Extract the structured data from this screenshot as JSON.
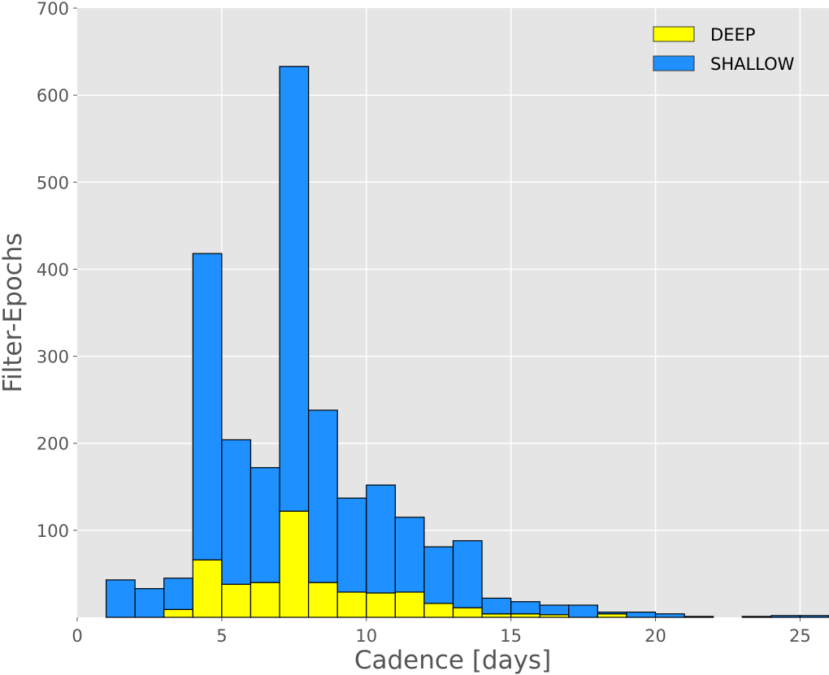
{
  "chart_data": {
    "type": "bar",
    "stacked": true,
    "title": "",
    "xlabel": "Cadence [days]",
    "ylabel": "Filter-Epochs",
    "xlim": [
      0,
      26
    ],
    "ylim": [
      0,
      700
    ],
    "xticks": [
      0,
      5,
      10,
      15,
      20,
      25
    ],
    "yticks": [
      100,
      200,
      300,
      400,
      500,
      600,
      700
    ],
    "grid": true,
    "legend_position": "upper right",
    "bin_width": 1,
    "bin_edges": [
      1,
      2,
      3,
      4,
      5,
      6,
      7,
      8,
      9,
      10,
      11,
      12,
      13,
      14,
      15,
      16,
      17,
      18,
      19,
      20,
      21,
      22,
      23,
      24,
      25,
      26
    ],
    "categories": [
      "1-2",
      "2-3",
      "3-4",
      "4-5",
      "5-6",
      "6-7",
      "7-8",
      "8-9",
      "9-10",
      "10-11",
      "11-12",
      "12-13",
      "13-14",
      "14-15",
      "15-16",
      "16-17",
      "17-18",
      "18-19",
      "19-20",
      "20-21",
      "21-22",
      "22-23",
      "23-24",
      "24-25",
      "25-26"
    ],
    "series": [
      {
        "name": "DEEP",
        "color": "#ffff00",
        "values": [
          0,
          0,
          9,
          66,
          38,
          40,
          122,
          40,
          29,
          28,
          29,
          16,
          11,
          4,
          4,
          3,
          0,
          4,
          0,
          0,
          0,
          0,
          0,
          0,
          0
        ]
      },
      {
        "name": "SHALLOW",
        "color": "#1e90ff",
        "values": [
          43,
          33,
          36,
          352,
          166,
          132,
          511,
          198,
          108,
          124,
          86,
          65,
          77,
          18,
          14,
          11,
          14,
          2,
          6,
          4,
          1,
          0,
          1,
          2,
          2
        ]
      }
    ],
    "totals": [
      43,
      33,
      45,
      418,
      204,
      172,
      633,
      238,
      137,
      152,
      115,
      81,
      88,
      22,
      18,
      14,
      14,
      6,
      6,
      4,
      1,
      0,
      1,
      2,
      2
    ]
  },
  "colors": {
    "plot_background": "#e5e5e5",
    "gridline": "#ffffff",
    "bar_edge": "#000000",
    "tick_text": "#555555"
  }
}
